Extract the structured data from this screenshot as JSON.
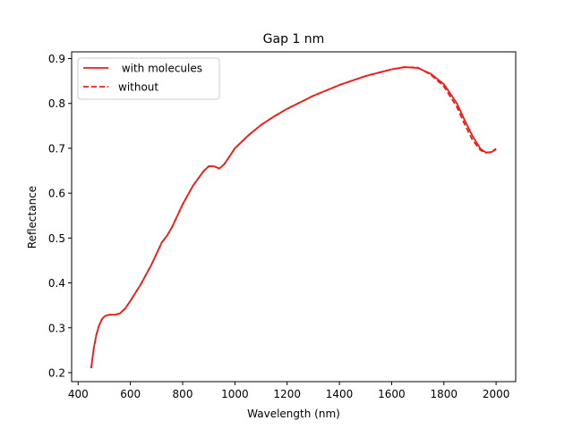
{
  "chart_data": {
    "type": "line",
    "title": "Gap 1 nm",
    "xlabel": "Wavelength (nm)",
    "ylabel": "Reflectance",
    "xlim": [
      375,
      2075
    ],
    "ylim": [
      0.18,
      0.915
    ],
    "xticks": [
      400,
      600,
      800,
      1000,
      1200,
      1400,
      1600,
      1800,
      2000
    ],
    "yticks": [
      0.2,
      0.3,
      0.4,
      0.5,
      0.6,
      0.7,
      0.8,
      0.9
    ],
    "xtick_labels": [
      "400",
      "600",
      "800",
      "1000",
      "1200",
      "1400",
      "1600",
      "1800",
      "2000"
    ],
    "ytick_labels": [
      "0.2",
      "0.3",
      "0.4",
      "0.5",
      "0.6",
      "0.7",
      "0.8",
      "0.9"
    ],
    "grid": false,
    "legend_position": "top-left",
    "series": [
      {
        "name": " with molecules",
        "color": "#ee1c14",
        "style": "solid",
        "x": [
          450,
          460,
          470,
          480,
          490,
          500,
          510,
          520,
          540,
          560,
          580,
          600,
          640,
          680,
          720,
          740,
          760,
          800,
          840,
          880,
          900,
          920,
          940,
          960,
          1000,
          1050,
          1100,
          1150,
          1200,
          1300,
          1400,
          1500,
          1600,
          1650,
          1700,
          1750,
          1800,
          1850,
          1880,
          1910,
          1940,
          1960,
          1980,
          2000
        ],
        "y": [
          0.21,
          0.255,
          0.285,
          0.305,
          0.318,
          0.325,
          0.328,
          0.329,
          0.329,
          0.332,
          0.343,
          0.36,
          0.397,
          0.44,
          0.49,
          0.505,
          0.525,
          0.575,
          0.617,
          0.649,
          0.66,
          0.66,
          0.655,
          0.665,
          0.7,
          0.728,
          0.752,
          0.771,
          0.788,
          0.817,
          0.841,
          0.861,
          0.876,
          0.881,
          0.879,
          0.866,
          0.843,
          0.8,
          0.762,
          0.727,
          0.699,
          0.691,
          0.691,
          0.698
        ]
      },
      {
        "name": "without",
        "color": "#ee1c14",
        "style": "dashed",
        "x": [
          450,
          460,
          470,
          480,
          490,
          500,
          510,
          520,
          540,
          560,
          580,
          600,
          640,
          680,
          720,
          740,
          760,
          800,
          840,
          880,
          900,
          920,
          940,
          960,
          1000,
          1050,
          1100,
          1150,
          1200,
          1300,
          1400,
          1500,
          1600,
          1650,
          1700,
          1750,
          1800,
          1850,
          1880,
          1910,
          1940,
          1960,
          1980,
          2000
        ],
        "y": [
          0.21,
          0.255,
          0.285,
          0.305,
          0.318,
          0.325,
          0.328,
          0.329,
          0.329,
          0.332,
          0.343,
          0.36,
          0.397,
          0.44,
          0.49,
          0.505,
          0.525,
          0.575,
          0.617,
          0.649,
          0.66,
          0.66,
          0.655,
          0.665,
          0.7,
          0.728,
          0.752,
          0.771,
          0.788,
          0.817,
          0.841,
          0.861,
          0.876,
          0.881,
          0.88,
          0.864,
          0.838,
          0.792,
          0.753,
          0.718,
          0.696,
          0.69,
          0.692,
          0.699
        ]
      }
    ]
  }
}
